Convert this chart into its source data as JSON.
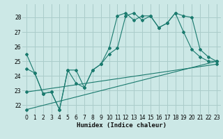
{
  "xlabel": "Humidex (Indice chaleur)",
  "background_color": "#cce8e6",
  "grid_color": "#aaccca",
  "line_color": "#1a7a6e",
  "xlim": [
    -0.5,
    23.5
  ],
  "ylim": [
    21.4,
    28.9
  ],
  "yticks": [
    22,
    23,
    24,
    25,
    26,
    27,
    28
  ],
  "xticks": [
    0,
    1,
    2,
    3,
    4,
    5,
    6,
    7,
    8,
    9,
    10,
    11,
    12,
    13,
    14,
    15,
    16,
    17,
    18,
    19,
    20,
    21,
    22,
    23
  ],
  "series1_x": [
    0,
    1,
    2,
    3,
    4,
    5,
    6,
    7,
    8,
    9,
    10,
    11,
    12,
    13,
    14,
    15,
    16,
    17,
    18,
    19,
    20,
    21,
    22,
    23
  ],
  "series1_y": [
    25.5,
    24.2,
    22.8,
    22.9,
    21.7,
    24.4,
    24.4,
    23.2,
    24.4,
    24.8,
    25.9,
    28.1,
    28.3,
    27.8,
    28.1,
    28.1,
    27.3,
    27.6,
    28.3,
    27.0,
    25.8,
    25.3,
    25.0,
    25.0
  ],
  "series2_x": [
    0,
    1,
    2,
    3,
    4,
    5,
    6,
    7,
    8,
    9,
    10,
    11,
    12,
    13,
    14,
    15,
    16,
    17,
    18,
    19,
    20,
    21,
    22,
    23
  ],
  "series2_y": [
    24.5,
    24.2,
    22.8,
    22.9,
    21.7,
    24.4,
    23.5,
    23.2,
    24.4,
    24.8,
    25.5,
    25.9,
    28.1,
    28.3,
    27.8,
    28.1,
    27.3,
    27.6,
    28.3,
    28.1,
    28.0,
    25.8,
    25.3,
    25.0
  ],
  "series3_x": [
    0,
    23
  ],
  "series3_y": [
    22.9,
    24.8
  ],
  "series4_x": [
    0,
    23
  ],
  "series4_y": [
    21.7,
    25.0
  ]
}
